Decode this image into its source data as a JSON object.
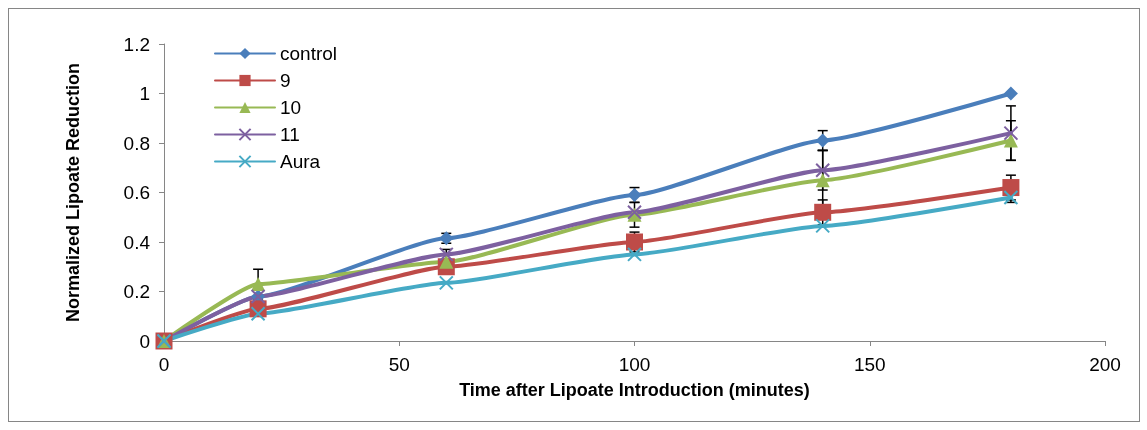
{
  "chart_data": {
    "type": "line",
    "xlabel": "Time after Lipoate Introduction (minutes)",
    "ylabel": "Normalized Lipoate Reduction",
    "x": [
      0,
      20,
      60,
      100,
      140,
      180
    ],
    "series": [
      {
        "name": "control",
        "color": "#4a7ebb",
        "marker": "diamond",
        "values": [
          0,
          0.18,
          0.415,
          0.59,
          0.81,
          1.0
        ],
        "errors": [
          null,
          null,
          0.02,
          0.03,
          0.04,
          null
        ]
      },
      {
        "name": "9",
        "color": "#be4b48",
        "marker": "square",
        "values": [
          0,
          0.13,
          0.3,
          0.4,
          0.52,
          0.62
        ],
        "errors": [
          null,
          null,
          null,
          0.04,
          0.05,
          0.05
        ]
      },
      {
        "name": "10",
        "color": "#98b954",
        "marker": "triangle",
        "values": [
          0,
          0.23,
          0.32,
          0.51,
          0.65,
          0.81
        ],
        "errors": [
          null,
          0.06,
          null,
          0.05,
          0.12,
          0.08
        ]
      },
      {
        "name": "11",
        "color": "#7d60a0",
        "marker": "cross",
        "values": [
          0,
          0.18,
          0.35,
          0.52,
          0.69,
          0.84
        ],
        "errors": [
          null,
          null,
          0.02,
          null,
          0.08,
          0.11
        ]
      },
      {
        "name": "Aura",
        "color": "#46aac5",
        "marker": "cross",
        "values": [
          0,
          0.11,
          0.235,
          0.35,
          0.465,
          0.58
        ],
        "errors": [
          null,
          null,
          null,
          null,
          null,
          0.02
        ]
      }
    ],
    "xlim": [
      0,
      200
    ],
    "xticks": [
      0,
      50,
      100,
      150,
      200
    ],
    "ylim": [
      0,
      1.2
    ],
    "yticks": [
      0,
      0.2,
      0.4,
      0.6,
      0.8,
      1,
      1.2
    ],
    "grid": false,
    "legend": "top left",
    "line_style": "solid"
  }
}
